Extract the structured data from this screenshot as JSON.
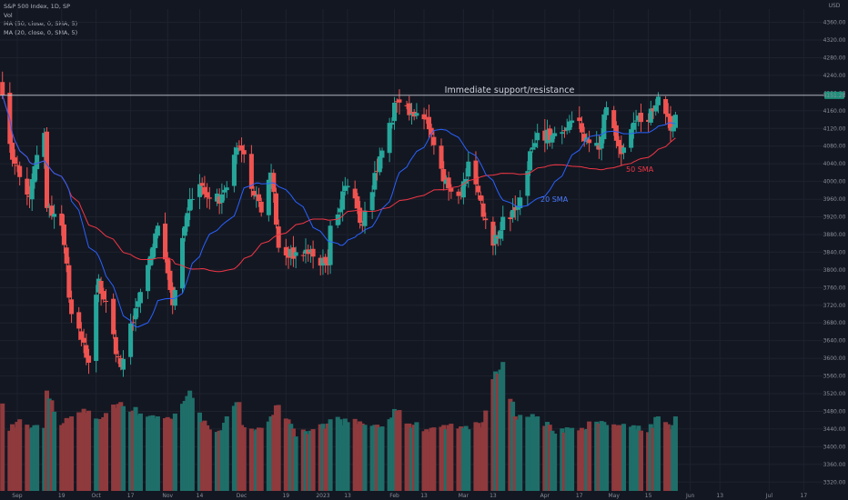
{
  "legend": {
    "title": "S&P 500 Index, 1D, SP",
    "vol": "Vol",
    "ma50": "MA (50, close, 0, SMA, 5)",
    "ma20": "MA (20, close, 0, SMA, 5)"
  },
  "axis": {
    "currency": "USD",
    "price_badge": "4151.28",
    "y_ticks": [
      3320,
      3360,
      3400,
      3440,
      3480,
      3520,
      3560,
      3600,
      3640,
      3680,
      3720,
      3760,
      3800,
      3840,
      3880,
      3920,
      3960,
      4000,
      4040,
      4080,
      4120,
      4160,
      4200,
      4240,
      4280,
      4320,
      4360
    ],
    "x_ticks": [
      {
        "label": "Sep",
        "date": "2022-09-01"
      },
      {
        "label": "19",
        "date": "2022-09-19"
      },
      {
        "label": "Oct",
        "date": "2022-10-03"
      },
      {
        "label": "17",
        "date": "2022-10-17"
      },
      {
        "label": "Nov",
        "date": "2022-11-01"
      },
      {
        "label": "14",
        "date": "2022-11-14"
      },
      {
        "label": "Dec",
        "date": "2022-12-01"
      },
      {
        "label": "19",
        "date": "2022-12-19"
      },
      {
        "label": "2023",
        "date": "2023-01-03"
      },
      {
        "label": "13",
        "date": "2023-01-13"
      },
      {
        "label": "Feb",
        "date": "2023-02-01"
      },
      {
        "label": "13",
        "date": "2023-02-13"
      },
      {
        "label": "Mar",
        "date": "2023-03-01"
      },
      {
        "label": "13",
        "date": "2023-03-13"
      },
      {
        "label": "Apr",
        "date": "2023-04-03"
      },
      {
        "label": "17",
        "date": "2023-04-17"
      },
      {
        "label": "May",
        "date": "2023-05-01"
      },
      {
        "label": "15",
        "date": "2023-05-15"
      },
      {
        "label": "Jun",
        "date": "2023-06-01"
      },
      {
        "label": "13",
        "date": "2023-06-13"
      },
      {
        "label": "Jul",
        "date": "2023-07-03"
      },
      {
        "label": "17",
        "date": "2023-07-17"
      }
    ]
  },
  "annotations": {
    "resistance_label": "Immediate support/resistance",
    "sma20_label": "20 SMA",
    "sma50_label": "50 SMA"
  },
  "colors": {
    "up": "#26a69a",
    "down": "#ef5350",
    "up_vol": "#1f6e69",
    "down_vol": "#8f3a3d",
    "sma20": "#2962ff",
    "sma50": "#f23645",
    "grid": "#1e222d",
    "resistance": "#c8cdd6",
    "badge": "#1e8f7a"
  },
  "chart_data": {
    "type": "candlestick",
    "title": "S&P 500 Index, 1D, SP",
    "ylim": [
      3300,
      4390
    ],
    "xlim": [
      "2022-08-25",
      "2023-07-25"
    ],
    "resistance_level": 4195,
    "grid": true,
    "anchors": [
      [
        "2022-08-26",
        4195,
        610
      ],
      [
        "2022-08-29",
        4085,
        420
      ],
      [
        "2022-09-02",
        4010,
        500
      ],
      [
        "2022-09-06",
        3965,
        430
      ],
      [
        "2022-09-09",
        4060,
        460
      ],
      [
        "2022-09-12",
        4110,
        440
      ],
      [
        "2022-09-13",
        3940,
        700
      ],
      [
        "2022-09-19",
        3900,
        460
      ],
      [
        "2022-09-23",
        3700,
        520
      ],
      [
        "2022-09-30",
        3590,
        560
      ],
      [
        "2022-10-04",
        3780,
        500
      ],
      [
        "2022-10-13",
        3580,
        620
      ],
      [
        "2022-10-21",
        3750,
        540
      ],
      [
        "2022-10-28",
        3900,
        520
      ],
      [
        "2022-11-03",
        3720,
        500
      ],
      [
        "2022-11-10",
        3960,
        700
      ],
      [
        "2022-11-15",
        3990,
        480
      ],
      [
        "2022-11-22",
        3950,
        420
      ],
      [
        "2022-11-30",
        4080,
        620
      ],
      [
        "2022-12-01",
        4070,
        460
      ],
      [
        "2022-12-09",
        3930,
        440
      ],
      [
        "2022-12-13",
        4020,
        520
      ],
      [
        "2022-12-16",
        3850,
        600
      ],
      [
        "2022-12-23",
        3840,
        380
      ],
      [
        "2022-12-29",
        3845,
        420
      ],
      [
        "2023-01-05",
        3810,
        470
      ],
      [
        "2023-01-06",
        3900,
        500
      ],
      [
        "2023-01-13",
        3990,
        480
      ],
      [
        "2023-01-19",
        3900,
        470
      ],
      [
        "2023-01-27",
        4070,
        450
      ],
      [
        "2023-02-02",
        4180,
        560
      ],
      [
        "2023-02-07",
        4150,
        470
      ],
      [
        "2023-02-14",
        4140,
        430
      ],
      [
        "2023-02-21",
        4000,
        460
      ],
      [
        "2023-02-28",
        3970,
        450
      ],
      [
        "2023-03-03",
        4045,
        430
      ],
      [
        "2023-03-09",
        3920,
        480
      ],
      [
        "2023-03-13",
        3855,
        780
      ],
      [
        "2023-03-17",
        3920,
        900
      ],
      [
        "2023-03-22",
        3935,
        520
      ],
      [
        "2023-03-31",
        4110,
        520
      ],
      [
        "2023-04-06",
        4105,
        420
      ],
      [
        "2023-04-14",
        4138,
        440
      ],
      [
        "2023-04-25",
        4072,
        470
      ],
      [
        "2023-04-28",
        4168,
        460
      ],
      [
        "2023-05-04",
        4062,
        460
      ],
      [
        "2023-05-10",
        4138,
        430
      ],
      [
        "2023-05-15",
        4135,
        410
      ],
      [
        "2023-05-19",
        4192,
        520
      ],
      [
        "2023-05-24",
        4115,
        430
      ],
      [
        "2023-05-26",
        4151,
        520
      ]
    ]
  }
}
